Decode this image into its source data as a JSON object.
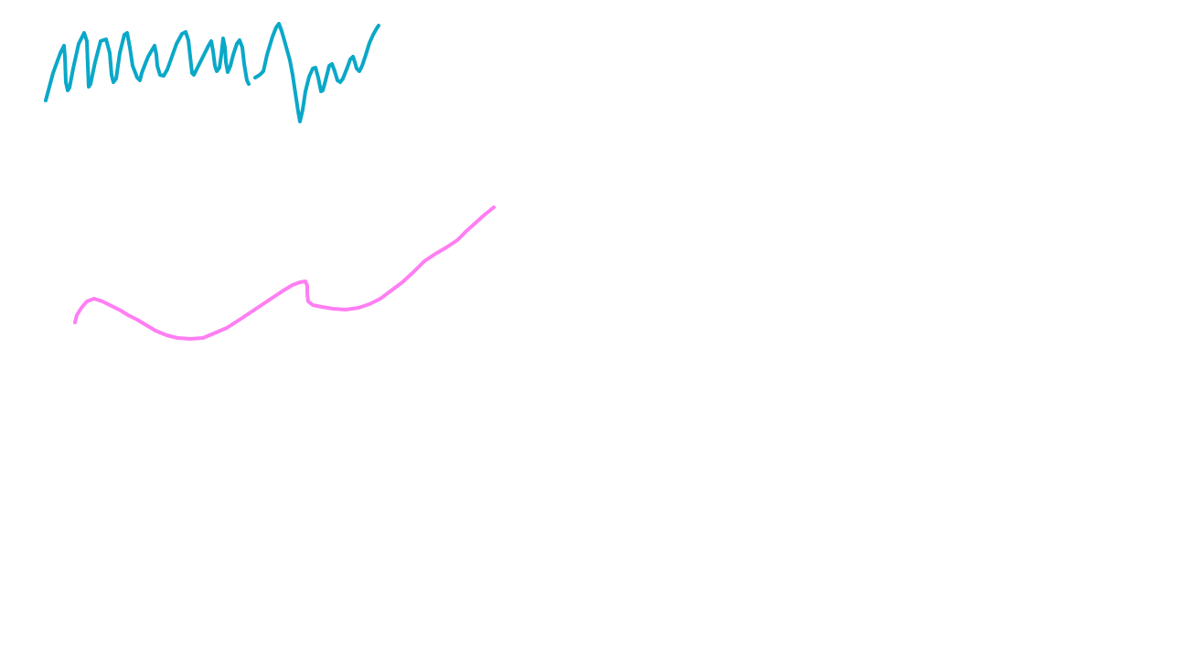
{
  "canvas": {
    "background": "#ffffff"
  },
  "strokes": [
    {
      "name": "zigzag-stroke",
      "color": "#0aa8c8"
    },
    {
      "name": "wave-stroke",
      "color": "#ff7ef3"
    }
  ]
}
